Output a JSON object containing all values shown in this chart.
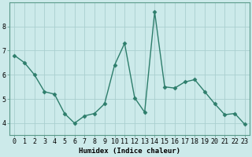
{
  "x": [
    0,
    1,
    2,
    3,
    4,
    5,
    6,
    7,
    8,
    9,
    10,
    11,
    12,
    13,
    14,
    15,
    16,
    17,
    18,
    19,
    20,
    21,
    22,
    23
  ],
  "y": [
    6.8,
    6.5,
    6.0,
    5.3,
    5.2,
    4.4,
    4.0,
    4.3,
    4.4,
    4.8,
    6.4,
    7.3,
    5.05,
    4.45,
    8.6,
    5.5,
    5.45,
    5.7,
    5.8,
    5.3,
    4.8,
    4.35,
    4.4,
    3.95
  ],
  "line_color": "#2d7d6b",
  "marker": "D",
  "markersize": 2.5,
  "linewidth": 1.0,
  "bg_color": "#cceaea",
  "grid_color": "#aacfcf",
  "xlabel": "Humidex (Indice chaleur)",
  "xlim": [
    -0.5,
    23.5
  ],
  "ylim": [
    3.5,
    9.0
  ],
  "yticks": [
    4,
    5,
    6,
    7,
    8
  ],
  "xticks": [
    0,
    1,
    2,
    3,
    4,
    5,
    6,
    7,
    8,
    9,
    10,
    11,
    12,
    13,
    14,
    15,
    16,
    17,
    18,
    19,
    20,
    21,
    22,
    23
  ],
  "xlabel_fontsize": 6.5,
  "tick_fontsize": 6.0
}
